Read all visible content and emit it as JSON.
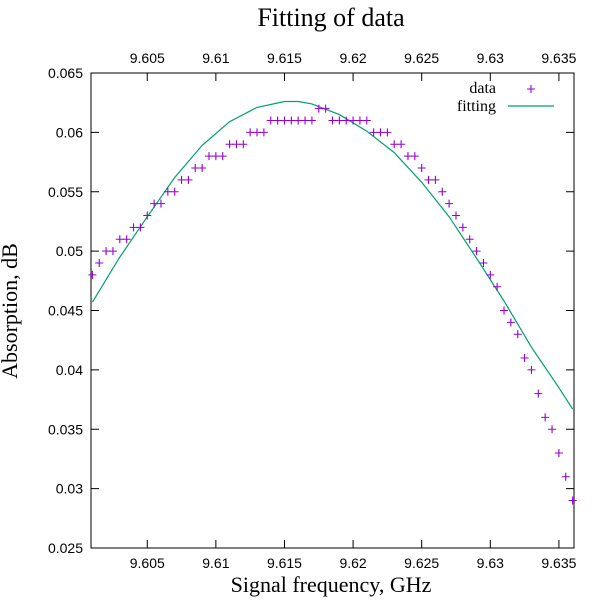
{
  "chart_data": {
    "type": "scatter",
    "title": "Fitting of data",
    "xlabel": "Signal frequency, GHz",
    "ylabel": "Absorption, dB",
    "xlim": [
      9.6009,
      9.6361
    ],
    "ylim": [
      0.025,
      0.065
    ],
    "x_ticks": [
      "9.605",
      "9.61",
      "9.615",
      "9.62",
      "9.625",
      "9.63",
      "9.635"
    ],
    "x_tick_values": [
      9.605,
      9.61,
      9.615,
      9.62,
      9.625,
      9.63,
      9.635
    ],
    "y_ticks": [
      "0.025",
      "0.03",
      "0.035",
      "0.04",
      "0.045",
      "0.05",
      "0.055",
      "0.06",
      "0.065"
    ],
    "y_tick_values": [
      0.025,
      0.03,
      0.035,
      0.04,
      0.045,
      0.05,
      0.055,
      0.06,
      0.065
    ],
    "top_axis_mirrored": true,
    "grid": false,
    "legend_position": "top-right",
    "colors": {
      "data": "#9400d3",
      "fitting": "#009e73"
    },
    "series": [
      {
        "name": "data",
        "style": "points",
        "marker": "plus",
        "x": [
          9.601,
          9.6015,
          9.602,
          9.6025,
          9.603,
          9.6035,
          9.604,
          9.6045,
          9.605,
          9.6055,
          9.606,
          9.6065,
          9.607,
          9.6075,
          9.608,
          9.6085,
          9.609,
          9.6095,
          9.61,
          9.6105,
          9.611,
          9.6115,
          9.612,
          9.6125,
          9.613,
          9.6135,
          9.614,
          9.6145,
          9.615,
          9.6155,
          9.616,
          9.6165,
          9.617,
          9.6175,
          9.618,
          9.6185,
          9.619,
          9.6195,
          9.62,
          9.6205,
          9.621,
          9.6215,
          9.622,
          9.6225,
          9.623,
          9.6235,
          9.624,
          9.6245,
          9.625,
          9.6255,
          9.626,
          9.6265,
          9.627,
          9.6275,
          9.628,
          9.6285,
          9.629,
          9.6295,
          9.63,
          9.6305,
          9.631,
          9.6315,
          9.632,
          9.6325,
          9.633,
          9.6335,
          9.634,
          9.6345,
          9.635,
          9.6355,
          9.636
        ],
        "y": [
          0.048,
          0.049,
          0.05,
          0.05,
          0.051,
          0.051,
          0.052,
          0.052,
          0.053,
          0.054,
          0.054,
          0.055,
          0.055,
          0.056,
          0.056,
          0.057,
          0.057,
          0.058,
          0.058,
          0.058,
          0.059,
          0.059,
          0.059,
          0.06,
          0.06,
          0.06,
          0.061,
          0.061,
          0.061,
          0.061,
          0.061,
          0.061,
          0.061,
          0.062,
          0.062,
          0.061,
          0.061,
          0.061,
          0.061,
          0.061,
          0.061,
          0.06,
          0.06,
          0.06,
          0.059,
          0.059,
          0.058,
          0.058,
          0.057,
          0.056,
          0.056,
          0.055,
          0.054,
          0.053,
          0.052,
          0.051,
          0.05,
          0.049,
          0.048,
          0.047,
          0.045,
          0.044,
          0.043,
          0.041,
          0.04,
          0.038,
          0.036,
          0.035,
          0.033,
          0.031,
          0.029
        ]
      },
      {
        "name": "fitting",
        "style": "line",
        "x": [
          9.601,
          9.603,
          9.605,
          9.607,
          9.609,
          9.611,
          9.613,
          9.615,
          9.616,
          9.617,
          9.619,
          9.621,
          9.623,
          9.625,
          9.627,
          9.629,
          9.631,
          9.633,
          9.635,
          9.636
        ],
        "y": [
          0.0457,
          0.0495,
          0.0529,
          0.0562,
          0.0589,
          0.0609,
          0.0621,
          0.0626,
          0.0626,
          0.0624,
          0.0615,
          0.0601,
          0.0583,
          0.0558,
          0.0529,
          0.0494,
          0.0458,
          0.0419,
          0.0385,
          0.0367
        ]
      }
    ]
  }
}
